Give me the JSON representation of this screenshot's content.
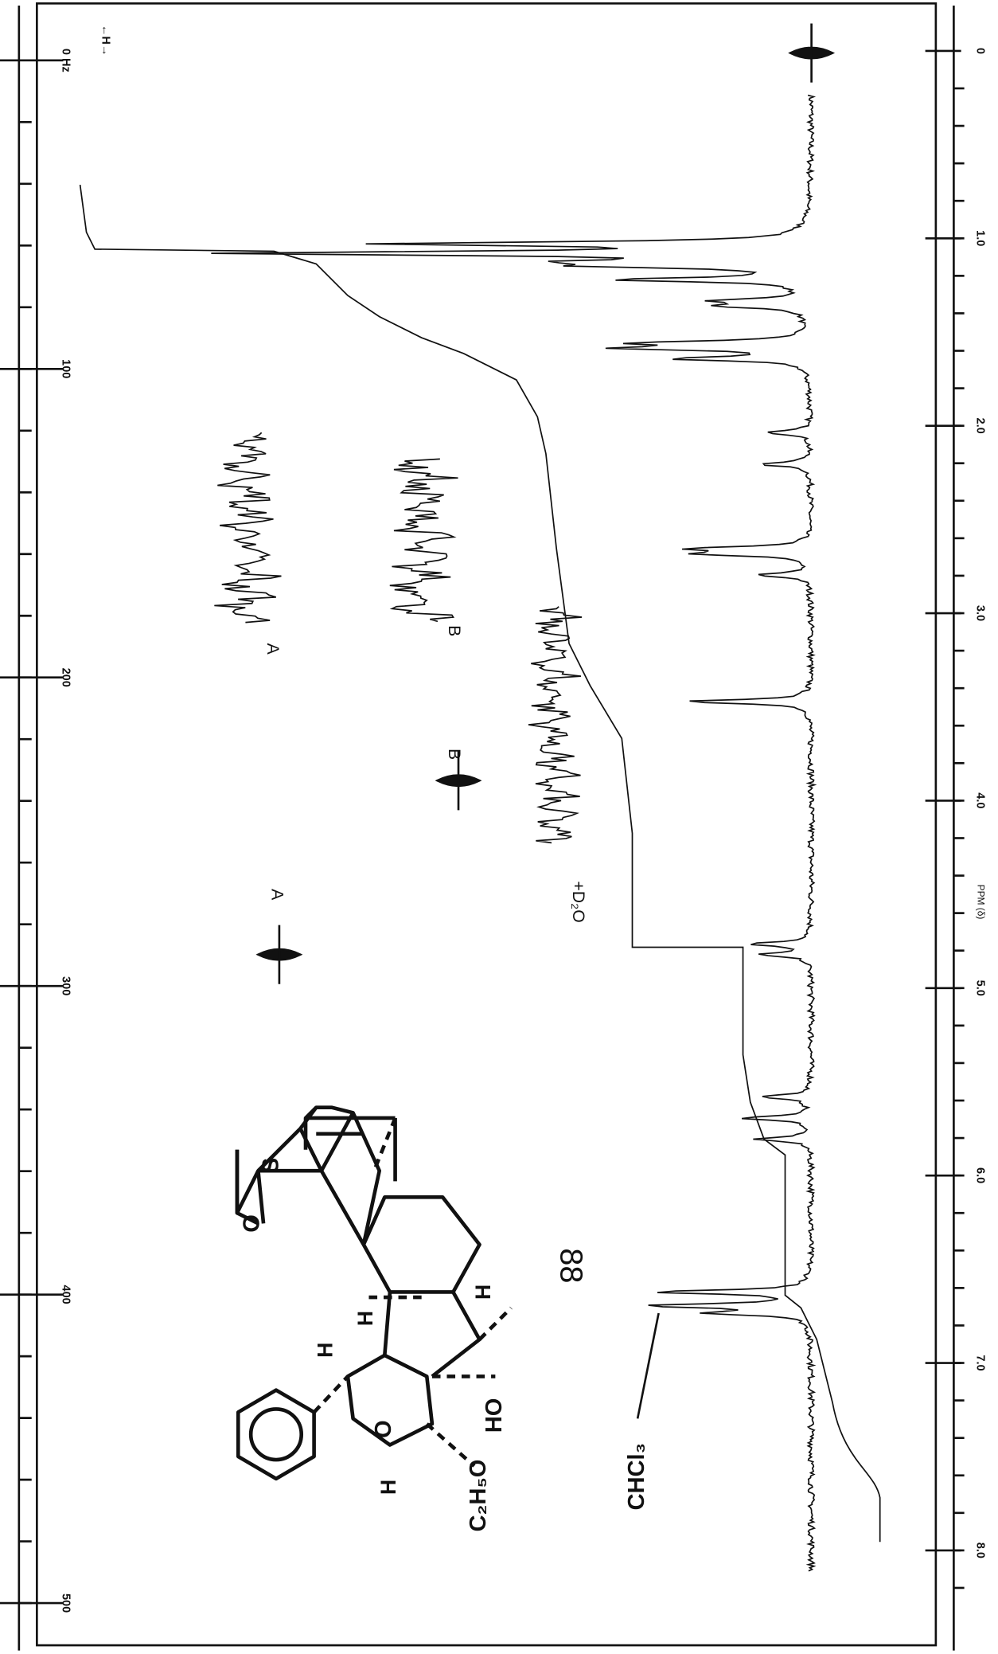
{
  "hz_axis": {
    "ticks": [
      {
        "value": 0,
        "label": "0 Hz"
      },
      100,
      200,
      300,
      400,
      500
    ],
    "direction_label": "←H→"
  },
  "ppm_axis": {
    "ticks": [
      0,
      {
        "value": 1,
        "label": "1.0"
      },
      {
        "value": 2,
        "label": "2.0"
      },
      {
        "value": 3,
        "label": "3.0"
      },
      {
        "value": 4,
        "label": "4.0"
      },
      {
        "value": 5,
        "label": "5.0"
      },
      {
        "value": 6,
        "label": "6.0"
      },
      {
        "value": 7,
        "label": "7.0"
      },
      {
        "value": 8,
        "label": "8.0"
      }
    ],
    "label": "PPM (δ)"
  },
  "annotations": {
    "trace_a": "A",
    "trace_b": "B",
    "signal_b": "B",
    "signal_a": "A",
    "d2o": "+D₂O",
    "compound_number": "88",
    "solvent": "CHCl₃"
  },
  "structure": {
    "ethoxy": "C₂H₅O",
    "hydroxy": "HO",
    "ring_oxygen": "O",
    "dioxolane_oxygen": "O",
    "sulfur": "S",
    "h1": "H",
    "h2": "H",
    "h3": "H",
    "h4": "H"
  }
}
